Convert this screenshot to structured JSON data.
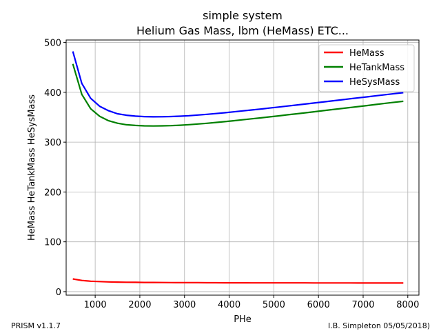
{
  "chart_data": {
    "type": "line",
    "title": "simple system",
    "subtitle": "Helium Gas Mass, lbm (HeMass) ETC...",
    "xlabel": "PHe",
    "ylabel": "HeMass HeTankMass HeSysMass",
    "xlim": [
      350,
      8250
    ],
    "ylim": [
      -7,
      505
    ],
    "xticks": [
      1000,
      2000,
      3000,
      4000,
      5000,
      6000,
      7000,
      8000
    ],
    "yticks": [
      0,
      100,
      200,
      300,
      400,
      500
    ],
    "grid": true,
    "legend_position": "top-right",
    "x": [
      500,
      700,
      900,
      1100,
      1300,
      1500,
      1700,
      1900,
      2100,
      2300,
      2500,
      2700,
      2900,
      3100,
      3300,
      3500,
      3700,
      3900,
      4100,
      4300,
      4500,
      4700,
      4900,
      5100,
      5300,
      5500,
      5700,
      5900,
      6100,
      6300,
      6500,
      6700,
      6900,
      7100,
      7300,
      7500,
      7700,
      7900
    ],
    "series": [
      {
        "name": "HeMass",
        "color": "#ff0000",
        "values": [
          25.5,
          22.5,
          21.0,
          20.2,
          19.6,
          19.2,
          18.9,
          18.7,
          18.5,
          18.4,
          18.3,
          18.2,
          18.1,
          18.0,
          18.0,
          17.9,
          17.9,
          17.8,
          17.8,
          17.8,
          17.7,
          17.7,
          17.7,
          17.6,
          17.6,
          17.6,
          17.6,
          17.5,
          17.5,
          17.5,
          17.5,
          17.5,
          17.4,
          17.4,
          17.4,
          17.4,
          17.4,
          17.3
        ]
      },
      {
        "name": "HeTankMass",
        "color": "#008000",
        "values": [
          457,
          396,
          367,
          352,
          343,
          338,
          335,
          333.5,
          332.7,
          332.5,
          332.7,
          333.2,
          334.0,
          335.1,
          336.4,
          337.9,
          339.5,
          341.2,
          343.0,
          344.9,
          346.8,
          348.7,
          350.7,
          352.7,
          354.8,
          356.8,
          358.9,
          361.0,
          363.1,
          365.2,
          367.3,
          369.4,
          371.5,
          373.6,
          375.8,
          377.9,
          380.0,
          382.0
        ]
      },
      {
        "name": "HeSysMass",
        "color": "#0000ff",
        "values": [
          482,
          418,
          388,
          372,
          363,
          357,
          354,
          352.2,
          351.2,
          350.9,
          351.0,
          351.4,
          352.1,
          353.1,
          354.4,
          355.8,
          357.4,
          359.0,
          360.8,
          362.7,
          364.5,
          366.4,
          368.4,
          370.3,
          372.4,
          374.4,
          376.5,
          378.5,
          380.6,
          382.7,
          384.8,
          386.9,
          389.0,
          391.0,
          393.2,
          395.3,
          397.4,
          399.3
        ]
      }
    ]
  },
  "footer": {
    "left": "PRISM v1.1.7",
    "right": "I.B. Simpleton 05/05/2018)"
  }
}
